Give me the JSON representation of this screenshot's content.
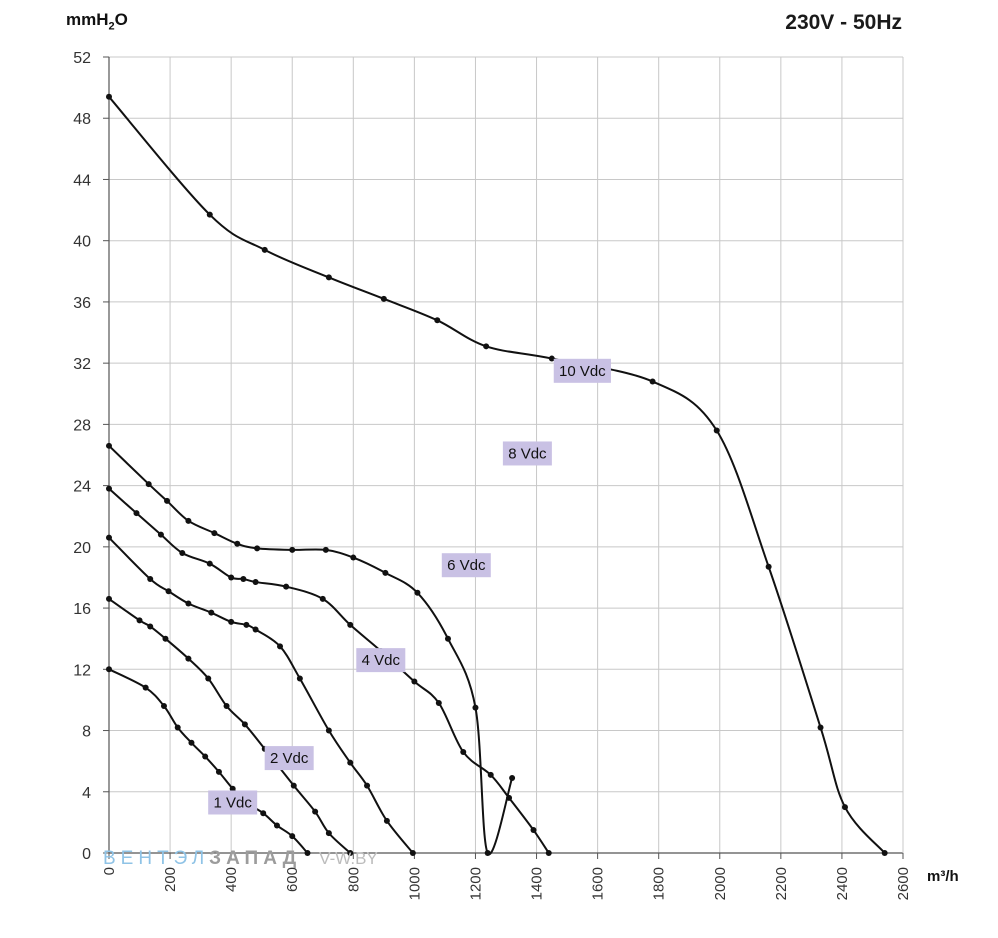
{
  "header": {
    "y_unit": "mmH",
    "y_unit_sub": "2",
    "y_unit_tail": "O",
    "title": "230V - 50Hz",
    "x_unit": "m³/h"
  },
  "watermark": {
    "part1": "ВЕНТЭЛ",
    "part2": "ЗАПАД",
    "part3": "V-W.BY"
  },
  "colors": {
    "curve": "#111111",
    "grid": "#c8c8c8",
    "axis": "#555555",
    "label_bg": "#c9c1e4"
  },
  "chart_data": {
    "type": "line",
    "title": "230V - 50Hz",
    "xlabel": "m³/h",
    "ylabel": "mmH2O",
    "xlim": [
      0,
      2600
    ],
    "ylim": [
      0,
      52
    ],
    "x_ticks": [
      0,
      200,
      400,
      600,
      800,
      1000,
      1200,
      1400,
      1600,
      1800,
      2000,
      2200,
      2400,
      2600
    ],
    "y_ticks": [
      0,
      4,
      8,
      12,
      16,
      20,
      24,
      28,
      32,
      36,
      40,
      44,
      48,
      52
    ],
    "grid": true,
    "series": [
      {
        "name": "1 Vdc",
        "label_at": [
          405,
          3.3
        ],
        "points": [
          [
            0,
            12.0
          ],
          [
            120,
            10.8
          ],
          [
            180,
            9.6
          ],
          [
            225,
            8.2
          ],
          [
            270,
            7.2
          ],
          [
            315,
            6.3
          ],
          [
            360,
            5.3
          ],
          [
            405,
            4.2
          ],
          [
            450,
            3.3
          ],
          [
            505,
            2.6
          ],
          [
            550,
            1.8
          ],
          [
            600,
            1.1
          ],
          [
            650,
            0
          ]
        ]
      },
      {
        "name": "2 Vdc",
        "label_at": [
          590,
          6.2
        ],
        "points": [
          [
            0,
            16.6
          ],
          [
            100,
            15.2
          ],
          [
            135,
            14.8
          ],
          [
            185,
            14.0
          ],
          [
            260,
            12.7
          ],
          [
            325,
            11.4
          ],
          [
            385,
            9.6
          ],
          [
            445,
            8.4
          ],
          [
            510,
            6.8
          ],
          [
            605,
            4.4
          ],
          [
            675,
            2.7
          ],
          [
            720,
            1.3
          ],
          [
            790,
            0
          ]
        ]
      },
      {
        "name": "4 Vdc",
        "label_at": [
          890,
          12.6
        ],
        "points": [
          [
            0,
            20.6
          ],
          [
            135,
            17.9
          ],
          [
            195,
            17.1
          ],
          [
            260,
            16.3
          ],
          [
            335,
            15.7
          ],
          [
            400,
            15.1
          ],
          [
            450,
            14.9
          ],
          [
            480,
            14.6
          ],
          [
            560,
            13.5
          ],
          [
            625,
            11.4
          ],
          [
            720,
            8.0
          ],
          [
            790,
            5.9
          ],
          [
            845,
            4.4
          ],
          [
            910,
            2.1
          ],
          [
            995,
            0
          ]
        ]
      },
      {
        "name": "6 Vdc",
        "label_at": [
          1170,
          18.8
        ],
        "points": [
          [
            0,
            23.8
          ],
          [
            90,
            22.2
          ],
          [
            170,
            20.8
          ],
          [
            240,
            19.6
          ],
          [
            330,
            18.9
          ],
          [
            400,
            18.0
          ],
          [
            440,
            17.9
          ],
          [
            480,
            17.7
          ],
          [
            580,
            17.4
          ],
          [
            700,
            16.6
          ],
          [
            790,
            14.9
          ],
          [
            890,
            13.2
          ],
          [
            1000,
            11.2
          ],
          [
            1080,
            9.8
          ],
          [
            1160,
            6.6
          ],
          [
            1250,
            5.1
          ],
          [
            1310,
            3.6
          ],
          [
            1390,
            1.5
          ],
          [
            1440,
            0
          ]
        ]
      },
      {
        "name": "8 Vdc",
        "label_at": [
          1370,
          26.1
        ],
        "points": [
          [
            0,
            26.6
          ],
          [
            130,
            24.1
          ],
          [
            190,
            23.0
          ],
          [
            260,
            21.7
          ],
          [
            345,
            20.9
          ],
          [
            420,
            20.2
          ],
          [
            485,
            19.9
          ],
          [
            600,
            19.8
          ],
          [
            710,
            19.8
          ],
          [
            800,
            19.3
          ],
          [
            905,
            18.3
          ],
          [
            1010,
            17.0
          ],
          [
            1110,
            14.0
          ],
          [
            1200,
            9.5
          ],
          [
            1320,
            4.9
          ],
          [
            1240,
            0
          ]
        ]
      },
      {
        "name": "10 Vdc",
        "label_at": [
          1550,
          31.5
        ],
        "points": [
          [
            0,
            49.4
          ],
          [
            330,
            41.7
          ],
          [
            510,
            39.4
          ],
          [
            720,
            37.6
          ],
          [
            900,
            36.2
          ],
          [
            1075,
            34.8
          ],
          [
            1235,
            33.1
          ],
          [
            1450,
            32.3
          ],
          [
            1780,
            30.8
          ],
          [
            1990,
            27.6
          ],
          [
            2160,
            18.7
          ],
          [
            2330,
            8.2
          ],
          [
            2410,
            3.0
          ],
          [
            2540,
            0
          ]
        ]
      }
    ]
  }
}
